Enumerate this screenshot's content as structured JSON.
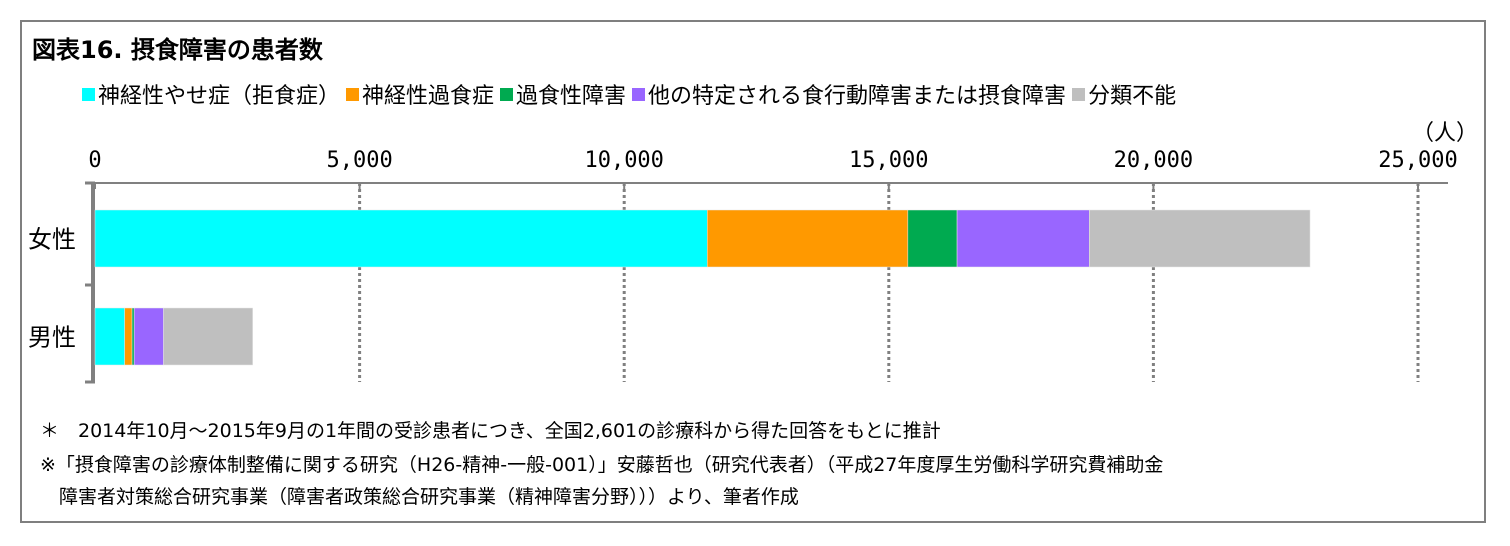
{
  "title": "図表16. 摂食障害の患者数",
  "chart_data": {
    "type": "bar",
    "orientation": "horizontal-stacked",
    "title": "図表16. 摂食障害の患者数",
    "unit": "（人）",
    "categories": [
      "女性",
      "男性"
    ],
    "xlim": [
      0,
      25000
    ],
    "ticks": [
      0,
      5000,
      10000,
      15000,
      20000,
      25000
    ],
    "tick_labels": [
      "0",
      "5,000",
      "10,000",
      "15,000",
      "20,000",
      "25,000"
    ],
    "grid": "vertical dashed",
    "legend": "top",
    "series": [
      {
        "name": "神経性やせ症（拒食症）",
        "color": "#00ffff",
        "values": [
          11570,
          560
        ]
      },
      {
        "name": "神経性過食症",
        "color": "#ff9900",
        "values": [
          3790,
          140
        ]
      },
      {
        "name": "過食性障害",
        "color": "#00aa50",
        "values": [
          930,
          40
        ]
      },
      {
        "name": "他の特定される食行動障害または摂食障害",
        "color": "#9966ff",
        "values": [
          2500,
          555
        ]
      },
      {
        "name": "分類不能",
        "color": "#bfbfbf",
        "values": [
          4170,
          1685
        ]
      }
    ]
  },
  "notes": [
    "＊　2014年10月～2015年9月の1年間の受診患者につき、全国2,601の診療科から得た回答をもとに推計",
    "※「摂食障害の診療体制整備に関する研究（H26-精神-一般-001）」安藤哲也（研究代表者）（平成27年度厚生労働科学研究費補助金",
    "　障害者対策総合研究事業（障害者政策総合研究事業（精神障害分野）））より、筆者作成"
  ]
}
